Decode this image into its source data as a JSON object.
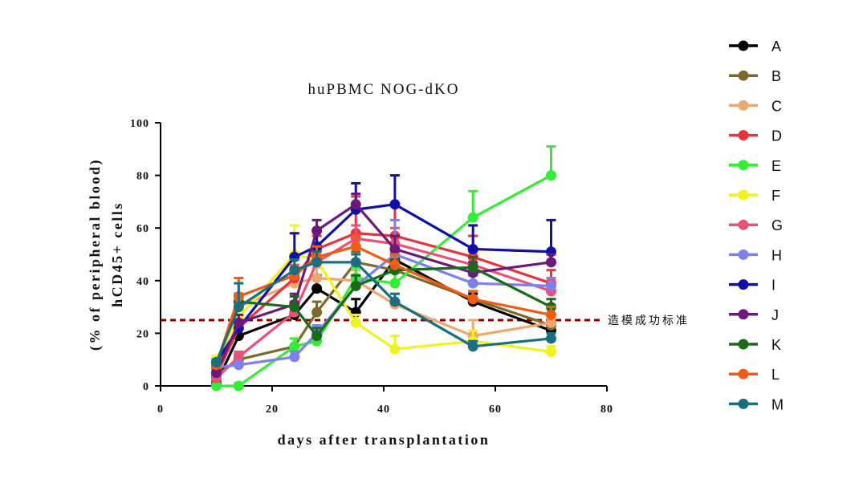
{
  "chart_data": {
    "type": "line",
    "title": "huPBMC NOG-dKO",
    "xlabel": "days after transplantation",
    "ylabel_line1": "(% of peripheral blood)",
    "ylabel_line2": "hCD45+ cells",
    "xlim": [
      0,
      80
    ],
    "ylim": [
      0,
      100
    ],
    "x_ticks": [
      "0",
      "20",
      "40",
      "60",
      "80"
    ],
    "y_ticks": [
      "0",
      "20",
      "40",
      "60",
      "80",
      "100"
    ],
    "grid": false,
    "legend_position": "right",
    "reference_line": {
      "y": 25,
      "label": "造模成功标准",
      "color": "#8b0000",
      "style": "dashed"
    },
    "series": [
      {
        "name": "A",
        "color": "#000000",
        "x": [
          10,
          14,
          24,
          28,
          35,
          42,
          56,
          70
        ],
        "y": [
          1,
          19,
          27,
          37,
          28,
          48,
          32,
          21
        ],
        "err": [
          1,
          6,
          5,
          5,
          5,
          6,
          3,
          2
        ]
      },
      {
        "name": "B",
        "color": "#7a6a2c",
        "x": [
          10,
          14,
          24,
          28,
          35,
          42,
          56,
          70
        ],
        "y": [
          4,
          10,
          15,
          28,
          47,
          44,
          33,
          23
        ],
        "err": [
          1,
          2,
          3,
          4,
          4,
          4,
          3,
          2
        ]
      },
      {
        "name": "C",
        "color": "#eda86e",
        "x": [
          10,
          14,
          24,
          28,
          35,
          42,
          56,
          70
        ],
        "y": [
          5,
          30,
          39,
          41,
          40,
          31,
          19,
          24
        ],
        "err": [
          1,
          3,
          4,
          4,
          4,
          4,
          6,
          3
        ]
      },
      {
        "name": "D",
        "color": "#e8323c",
        "x": [
          10,
          14,
          24,
          28,
          35,
          42,
          56,
          70
        ],
        "y": [
          4,
          22,
          41,
          52,
          58,
          57,
          49,
          39
        ],
        "err": [
          1,
          3,
          4,
          5,
          14,
          12,
          8,
          5
        ]
      },
      {
        "name": "E",
        "color": "#33ee33",
        "x": [
          10,
          14,
          24,
          28,
          35,
          42,
          56,
          70
        ],
        "y": [
          0,
          0,
          15,
          17,
          41,
          39,
          64,
          80
        ],
        "err": [
          1,
          1,
          3,
          3,
          4,
          4,
          10,
          11
        ]
      },
      {
        "name": "F",
        "color": "#f2f21e",
        "x": [
          10,
          14,
          24,
          28,
          35,
          42,
          56,
          70
        ],
        "y": [
          10,
          26,
          50,
          48,
          24,
          14,
          17,
          13
        ],
        "err": [
          1,
          3,
          11,
          3,
          3,
          5,
          4,
          2
        ]
      },
      {
        "name": "G",
        "color": "#ec5077",
        "x": [
          10,
          14,
          24,
          28,
          35,
          42,
          56,
          70
        ],
        "y": [
          3,
          11,
          28,
          47,
          56,
          54,
          46,
          36
        ],
        "err": [
          1,
          2,
          4,
          4,
          5,
          6,
          5,
          4
        ]
      },
      {
        "name": "H",
        "color": "#7f7ff0",
        "x": [
          10,
          14,
          24,
          28,
          35,
          42,
          56,
          70
        ],
        "y": [
          7,
          8,
          11,
          20,
          38,
          50,
          39,
          38
        ],
        "err": [
          1,
          1,
          2,
          3,
          4,
          13,
          3,
          3
        ]
      },
      {
        "name": "I",
        "color": "#1010a8",
        "x": [
          10,
          14,
          24,
          28,
          35,
          42,
          56,
          70
        ],
        "y": [
          9,
          22,
          49,
          53,
          67,
          69,
          52,
          51
        ],
        "err": [
          1,
          3,
          9,
          6,
          10,
          11,
          9,
          12
        ]
      },
      {
        "name": "J",
        "color": "#6c1a7a",
        "x": [
          10,
          14,
          24,
          28,
          35,
          42,
          56,
          70
        ],
        "y": [
          5,
          24,
          31,
          59,
          69,
          52,
          43,
          47
        ],
        "err": [
          1,
          3,
          4,
          4,
          4,
          5,
          4,
          3
        ]
      },
      {
        "name": "K",
        "color": "#1a6a1a",
        "x": [
          10,
          14,
          24,
          28,
          35,
          42,
          56,
          70
        ],
        "y": [
          8,
          32,
          30,
          19,
          38,
          44,
          45,
          30
        ],
        "err": [
          1,
          3,
          4,
          3,
          4,
          4,
          4,
          3
        ]
      },
      {
        "name": "L",
        "color": "#f05c14",
        "x": [
          10,
          14,
          24,
          28,
          35,
          42,
          56,
          70
        ],
        "y": [
          8,
          34,
          42,
          49,
          53,
          46,
          33,
          27
        ],
        "err": [
          1,
          7,
          4,
          4,
          4,
          4,
          3,
          3
        ]
      },
      {
        "name": "M",
        "color": "#1a6e80",
        "x": [
          10,
          14,
          24,
          28,
          35,
          42,
          56,
          70
        ],
        "y": [
          9,
          30,
          44,
          47,
          47,
          32,
          15,
          18
        ],
        "err": [
          1,
          9,
          4,
          4,
          3,
          3,
          2,
          2
        ]
      }
    ]
  }
}
